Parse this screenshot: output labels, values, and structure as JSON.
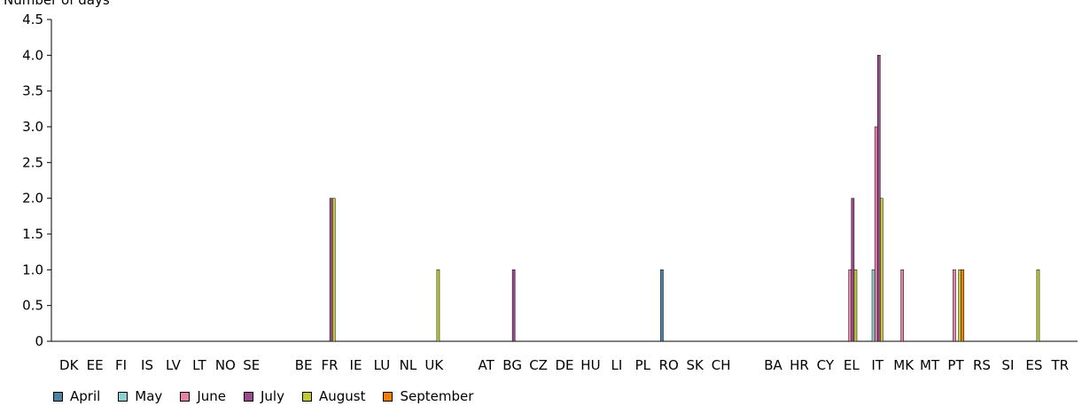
{
  "chart_data": {
    "type": "bar",
    "ylabel": "Number of days",
    "ylim": [
      0,
      4.5
    ],
    "yticks": [
      "0",
      "0.5",
      "1.0",
      "1.5",
      "2.0",
      "2.5",
      "3.0",
      "3.5",
      "4.0",
      "4.5"
    ],
    "grid": false,
    "legend_position": "bottom-left",
    "groups": [
      [
        "DK",
        "EE",
        "FI",
        "IS",
        "LV",
        "LT",
        "NO",
        "SE"
      ],
      [
        "BE",
        "FR",
        "IE",
        "LU",
        "NL",
        "UK"
      ],
      [
        "AT",
        "BG",
        "CZ",
        "DE",
        "HU",
        "LI",
        "PL",
        "RO",
        "SK",
        "CH"
      ],
      [
        "BA",
        "HR",
        "CY",
        "EL",
        "IT",
        "MK",
        "MT",
        "PT",
        "RS",
        "SI",
        "ES",
        "TR"
      ]
    ],
    "categories": [
      "DK",
      "EE",
      "FI",
      "IS",
      "LV",
      "LT",
      "NO",
      "SE",
      "BE",
      "FR",
      "IE",
      "LU",
      "NL",
      "UK",
      "AT",
      "BG",
      "CZ",
      "DE",
      "HU",
      "LI",
      "PL",
      "RO",
      "SK",
      "CH",
      "BA",
      "HR",
      "CY",
      "EL",
      "IT",
      "MK",
      "MT",
      "PT",
      "RS",
      "SI",
      "ES",
      "TR"
    ],
    "series": [
      {
        "name": "April",
        "color": "#4f81a0",
        "values": [
          0,
          0,
          0,
          0,
          0,
          0,
          0,
          0,
          0,
          0,
          0,
          0,
          0,
          0,
          0,
          0,
          0,
          0,
          0,
          0,
          0,
          1,
          0,
          0,
          0,
          0,
          0,
          0,
          0,
          0,
          0,
          0,
          0,
          0,
          0,
          0
        ]
      },
      {
        "name": "May",
        "color": "#8ed0cf",
        "values": [
          0,
          0,
          0,
          0,
          0,
          0,
          0,
          0,
          0,
          0,
          0,
          0,
          0,
          0,
          0,
          0,
          0,
          0,
          0,
          0,
          0,
          0,
          0,
          0,
          0,
          0,
          0,
          0,
          1,
          0,
          0,
          0,
          0,
          0,
          0,
          0
        ]
      },
      {
        "name": "June",
        "color": "#e083a6",
        "values": [
          0,
          0,
          0,
          0,
          0,
          0,
          0,
          0,
          0,
          0,
          0,
          0,
          0,
          0,
          0,
          0,
          0,
          0,
          0,
          0,
          0,
          0,
          0,
          0,
          0,
          0,
          0,
          1,
          3,
          1,
          0,
          1,
          0,
          0,
          0,
          0
        ]
      },
      {
        "name": "July",
        "color": "#9a4b8c",
        "values": [
          0,
          0,
          0,
          0,
          0,
          0,
          0,
          0,
          0,
          2,
          0,
          0,
          0,
          0,
          0,
          1,
          0,
          0,
          0,
          0,
          0,
          0,
          0,
          0,
          0,
          0,
          0,
          2,
          4,
          0,
          0,
          0,
          0,
          0,
          0,
          0
        ]
      },
      {
        "name": "August",
        "color": "#bfc93a",
        "values": [
          0,
          0,
          0,
          0,
          0,
          0,
          0,
          0,
          0,
          2,
          0,
          0,
          0,
          1,
          0,
          0,
          0,
          0,
          0,
          0,
          0,
          0,
          0,
          0,
          0,
          0,
          0,
          1,
          2,
          0,
          0,
          1,
          0,
          0,
          1,
          0
        ]
      },
      {
        "name": "September",
        "color": "#f07f0a",
        "values": [
          0,
          0,
          0,
          0,
          0,
          0,
          0,
          0,
          0,
          0,
          0,
          0,
          0,
          0,
          0,
          0,
          0,
          0,
          0,
          0,
          0,
          0,
          0,
          0,
          0,
          0,
          0,
          0,
          0,
          0,
          0,
          1,
          0,
          0,
          0,
          0
        ]
      }
    ]
  }
}
